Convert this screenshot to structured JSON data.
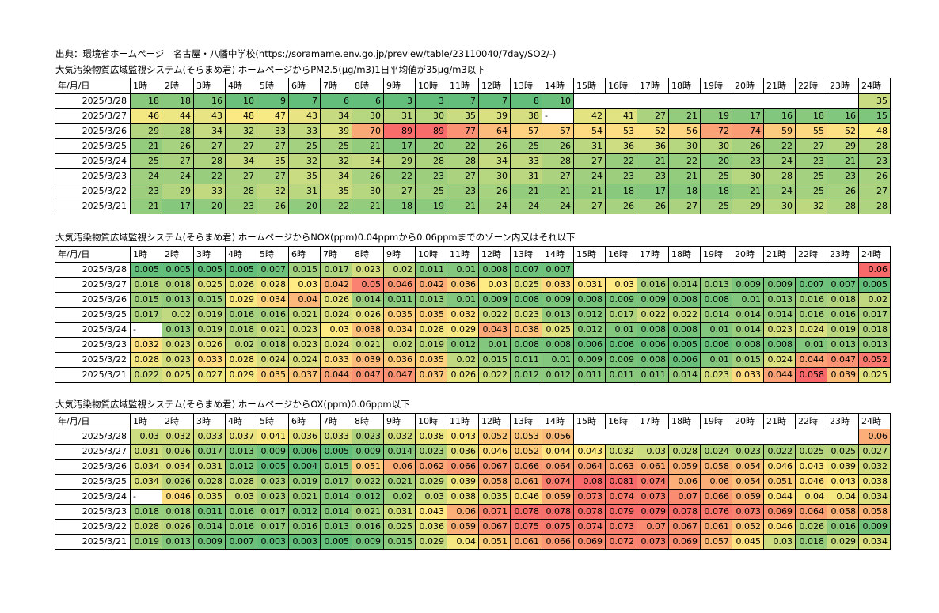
{
  "source_line": "出典：環境省ホームページ　名古屋・八幡中学校(https://soramame.env.go.jp/preview/table/23110040/7day/SO2/-)",
  "hours": [
    "1時",
    "2時",
    "3時",
    "4時",
    "5時",
    "6時",
    "7時",
    "8時",
    "9時",
    "10時",
    "11時",
    "12時",
    "13時",
    "14時",
    "15時",
    "16時",
    "17時",
    "18時",
    "19時",
    "20時",
    "21時",
    "22時",
    "23時",
    "24時"
  ],
  "tables": [
    {
      "title": "大気汚染物質広域監視システム(そらまめ君) ホームページからPM2.5(μg/m3)1日平均値が35μg/m3以下",
      "corner": "年/月/日",
      "scale": [
        8,
        90
      ],
      "rows": [
        {
          "date": "2025/3/28",
          "values": [
            "18",
            "18",
            "16",
            "10",
            "9",
            "7",
            "6",
            "6",
            "3",
            "3",
            "7",
            "7",
            "8",
            "10",
            "",
            "",
            "",
            "",
            "",
            "",
            "",
            "",
            "",
            "35"
          ]
        },
        {
          "date": "2025/3/27",
          "values": [
            "46",
            "44",
            "43",
            "48",
            "47",
            "43",
            "34",
            "30",
            "31",
            "30",
            "35",
            "39",
            "38",
            "-",
            "42",
            "41",
            "27",
            "21",
            "19",
            "17",
            "16",
            "18",
            "16",
            "15"
          ]
        },
        {
          "date": "2025/3/26",
          "values": [
            "29",
            "28",
            "34",
            "32",
            "33",
            "33",
            "39",
            "70",
            "89",
            "89",
            "77",
            "64",
            "57",
            "57",
            "54",
            "53",
            "52",
            "56",
            "72",
            "74",
            "59",
            "55",
            "52",
            "48"
          ]
        },
        {
          "date": "2025/3/25",
          "values": [
            "21",
            "26",
            "27",
            "27",
            "27",
            "25",
            "25",
            "21",
            "17",
            "20",
            "22",
            "26",
            "25",
            "26",
            "31",
            "36",
            "36",
            "30",
            "30",
            "26",
            "22",
            "27",
            "29",
            "28"
          ]
        },
        {
          "date": "2025/3/24",
          "values": [
            "25",
            "27",
            "28",
            "34",
            "35",
            "32",
            "32",
            "34",
            "29",
            "28",
            "28",
            "34",
            "33",
            "28",
            "27",
            "22",
            "21",
            "22",
            "20",
            "23",
            "24",
            "23",
            "21",
            "23"
          ]
        },
        {
          "date": "2025/3/23",
          "values": [
            "24",
            "24",
            "22",
            "27",
            "27",
            "35",
            "34",
            "26",
            "22",
            "23",
            "27",
            "30",
            "31",
            "27",
            "24",
            "23",
            "23",
            "21",
            "25",
            "30",
            "28",
            "25",
            "23",
            "26"
          ]
        },
        {
          "date": "2025/3/22",
          "values": [
            "23",
            "29",
            "33",
            "28",
            "32",
            "31",
            "35",
            "30",
            "27",
            "25",
            "23",
            "26",
            "21",
            "21",
            "21",
            "18",
            "17",
            "18",
            "18",
            "21",
            "24",
            "25",
            "26",
            "27"
          ]
        },
        {
          "date": "2025/3/21",
          "values": [
            "21",
            "17",
            "20",
            "23",
            "26",
            "20",
            "22",
            "21",
            "18",
            "19",
            "21",
            "24",
            "24",
            "24",
            "27",
            "26",
            "26",
            "27",
            "25",
            "29",
            "30",
            "32",
            "28",
            "28"
          ]
        }
      ]
    },
    {
      "title": "大気汚染物質広域監視システム(そらまめ君) ホームページからNOX(ppm)0.04ppmから0.06ppmまでのゾーン内又はそれ以下",
      "corner": "年/月/日",
      "scale": [
        0.005,
        0.055
      ],
      "rows": [
        {
          "date": "2025/3/28",
          "values": [
            "0.005",
            "0.005",
            "0.005",
            "0.005",
            "0.007",
            "0.015",
            "0.017",
            "0.023",
            "0.02",
            "0.011",
            "0.01",
            "0.008",
            "0.007",
            "0.007",
            "",
            "",
            "",
            "",
            "",
            "",
            "",
            "",
            "",
            "0.06"
          ]
        },
        {
          "date": "2025/3/27",
          "values": [
            "0.018",
            "0.018",
            "0.025",
            "0.026",
            "0.028",
            "0.03",
            "0.042",
            "0.05",
            "0.046",
            "0.042",
            "0.036",
            "0.03",
            "0.025",
            "0.033",
            "0.031",
            "0.03",
            "0.016",
            "0.014",
            "0.013",
            "0.009",
            "0.009",
            "0.007",
            "0.007",
            "0.005"
          ]
        },
        {
          "date": "2025/3/26",
          "values": [
            "0.015",
            "0.013",
            "0.015",
            "0.029",
            "0.034",
            "0.04",
            "0.026",
            "0.014",
            "0.011",
            "0.013",
            "0.01",
            "0.009",
            "0.008",
            "0.009",
            "0.008",
            "0.009",
            "0.009",
            "0.008",
            "0.008",
            "0.01",
            "0.013",
            "0.016",
            "0.018",
            "0.02"
          ]
        },
        {
          "date": "2025/3/25",
          "values": [
            "0.017",
            "0.02",
            "0.019",
            "0.016",
            "0.016",
            "0.021",
            "0.024",
            "0.026",
            "0.035",
            "0.035",
            "0.032",
            "0.022",
            "0.023",
            "0.013",
            "0.012",
            "0.017",
            "0.022",
            "0.022",
            "0.014",
            "0.014",
            "0.014",
            "0.016",
            "0.016",
            "0.017"
          ]
        },
        {
          "date": "2025/3/24",
          "values": [
            "-",
            "0.013",
            "0.019",
            "0.018",
            "0.021",
            "0.023",
            "0.03",
            "0.038",
            "0.034",
            "0.028",
            "0.029",
            "0.043",
            "0.038",
            "0.025",
            "0.012",
            "0.01",
            "0.008",
            "0.008",
            "0.01",
            "0.014",
            "0.023",
            "0.024",
            "0.019",
            "0.018"
          ]
        },
        {
          "date": "2025/3/23",
          "values": [
            "0.032",
            "0.023",
            "0.026",
            "0.02",
            "0.018",
            "0.023",
            "0.024",
            "0.021",
            "0.02",
            "0.019",
            "0.012",
            "0.01",
            "0.008",
            "0.008",
            "0.006",
            "0.006",
            "0.006",
            "0.005",
            "0.006",
            "0.008",
            "0.008",
            "0.01",
            "0.013",
            "0.013"
          ]
        },
        {
          "date": "2025/3/22",
          "values": [
            "0.028",
            "0.023",
            "0.033",
            "0.028",
            "0.024",
            "0.024",
            "0.033",
            "0.039",
            "0.036",
            "0.035",
            "0.02",
            "0.015",
            "0.011",
            "0.01",
            "0.009",
            "0.009",
            "0.008",
            "0.006",
            "0.01",
            "0.015",
            "0.024",
            "0.044",
            "0.047",
            "0.052"
          ]
        },
        {
          "date": "2025/3/21",
          "values": [
            "0.022",
            "0.025",
            "0.027",
            "0.029",
            "0.035",
            "0.037",
            "0.044",
            "0.047",
            "0.047",
            "0.037",
            "0.026",
            "0.022",
            "0.012",
            "0.012",
            "0.011",
            "0.011",
            "0.011",
            "0.014",
            "0.023",
            "0.033",
            "0.044",
            "0.058",
            "0.039",
            "0.025"
          ]
        }
      ]
    },
    {
      "title": "大気汚染物質広域監視システム(そらまめ君) ホームページからOX(ppm)0.06ppm以下",
      "corner": "年/月/日",
      "scale": [
        0.005,
        0.08
      ],
      "rows": [
        {
          "date": "2025/3/28",
          "values": [
            "0.03",
            "0.032",
            "0.033",
            "0.037",
            "0.041",
            "0.036",
            "0.033",
            "0.023",
            "0.032",
            "0.038",
            "0.043",
            "0.052",
            "0.053",
            "0.056",
            "",
            "",
            "",
            "",
            "",
            "",
            "",
            "",
            "",
            "0.06"
          ]
        },
        {
          "date": "2025/3/27",
          "values": [
            "0.031",
            "0.026",
            "0.017",
            "0.013",
            "0.009",
            "0.006",
            "0.005",
            "0.009",
            "0.014",
            "0.023",
            "0.036",
            "0.046",
            "0.052",
            "0.044",
            "0.043",
            "0.032",
            "0.03",
            "0.028",
            "0.024",
            "0.023",
            "0.022",
            "0.025",
            "0.025",
            "0.027"
          ]
        },
        {
          "date": "2025/3/26",
          "values": [
            "0.034",
            "0.034",
            "0.031",
            "0.012",
            "0.005",
            "0.004",
            "0.015",
            "0.051",
            "0.06",
            "0.062",
            "0.066",
            "0.067",
            "0.066",
            "0.064",
            "0.064",
            "0.063",
            "0.061",
            "0.059",
            "0.058",
            "0.054",
            "0.046",
            "0.043",
            "0.039",
            "0.032"
          ]
        },
        {
          "date": "2025/3/25",
          "values": [
            "0.034",
            "0.026",
            "0.028",
            "0.028",
            "0.023",
            "0.019",
            "0.017",
            "0.022",
            "0.021",
            "0.029",
            "0.039",
            "0.058",
            "0.061",
            "0.074",
            "0.08",
            "0.081",
            "0.074",
            "0.06",
            "0.06",
            "0.054",
            "0.051",
            "0.046",
            "0.043",
            "0.038"
          ]
        },
        {
          "date": "2025/3/24",
          "values": [
            "-",
            "0.046",
            "0.035",
            "0.03",
            "0.023",
            "0.021",
            "0.014",
            "0.012",
            "0.02",
            "0.03",
            "0.038",
            "0.035",
            "0.046",
            "0.059",
            "0.073",
            "0.074",
            "0.073",
            "0.07",
            "0.066",
            "0.059",
            "0.044",
            "0.04",
            "0.04",
            "0.034"
          ]
        },
        {
          "date": "2025/3/23",
          "values": [
            "0.018",
            "0.018",
            "0.011",
            "0.016",
            "0.017",
            "0.012",
            "0.014",
            "0.021",
            "0.031",
            "0.043",
            "0.06",
            "0.071",
            "0.078",
            "0.078",
            "0.078",
            "0.079",
            "0.079",
            "0.078",
            "0.076",
            "0.073",
            "0.069",
            "0.064",
            "0.058",
            "0.058"
          ]
        },
        {
          "date": "2025/3/22",
          "values": [
            "0.028",
            "0.026",
            "0.014",
            "0.016",
            "0.017",
            "0.016",
            "0.013",
            "0.016",
            "0.025",
            "0.036",
            "0.059",
            "0.067",
            "0.075",
            "0.075",
            "0.074",
            "0.073",
            "0.07",
            "0.067",
            "0.061",
            "0.052",
            "0.046",
            "0.026",
            "0.016",
            "0.009"
          ]
        },
        {
          "date": "2025/3/21",
          "values": [
            "0.019",
            "0.013",
            "0.009",
            "0.007",
            "0.003",
            "0.003",
            "0.005",
            "0.009",
            "0.015",
            "0.029",
            "0.04",
            "0.051",
            "0.061",
            "0.066",
            "0.069",
            "0.072",
            "0.073",
            "0.069",
            "0.057",
            "0.045",
            "0.03",
            "0.018",
            "0.029",
            "0.034"
          ]
        }
      ]
    }
  ]
}
